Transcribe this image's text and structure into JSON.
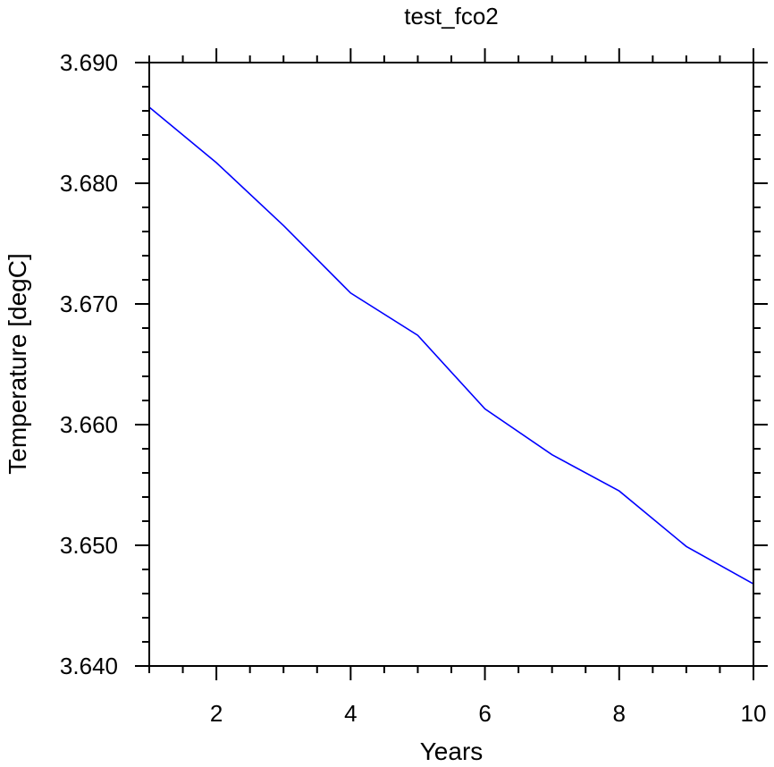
{
  "chart_data": {
    "type": "line",
    "title": "test_fco2",
    "xlabel": "Years",
    "ylabel": "Temperature [degC]",
    "xlim": [
      1,
      10
    ],
    "ylim": [
      3.64,
      3.69
    ],
    "x_ticks": [
      2,
      4,
      6,
      8,
      10
    ],
    "y_ticks": [
      3.64,
      3.65,
      3.66,
      3.67,
      3.68,
      3.69
    ],
    "y_tick_labels": [
      "3.640",
      "3.650",
      "3.660",
      "3.670",
      "3.680",
      "3.690"
    ],
    "grid": false,
    "series": [
      {
        "color": "#0000ff",
        "x": [
          1,
          2,
          3,
          4,
          5,
          6,
          7,
          8,
          9,
          10
        ],
        "y": [
          3.6863,
          3.6817,
          3.6765,
          3.6709,
          3.6674,
          3.6613,
          3.6575,
          3.6545,
          3.6499,
          3.6468
        ]
      }
    ]
  }
}
